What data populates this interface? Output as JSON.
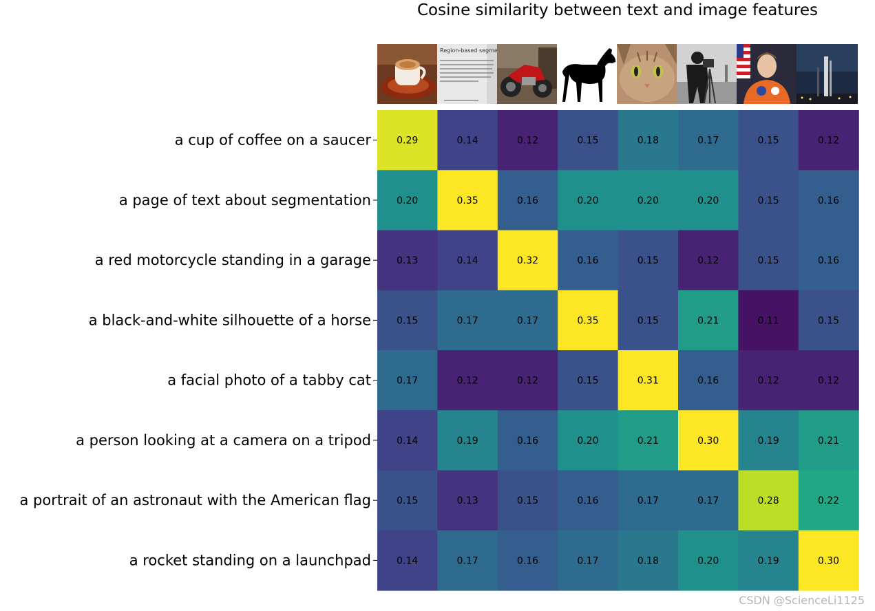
{
  "chart_data": {
    "type": "heatmap",
    "title": "Cosine similarity between text and image features",
    "rows": [
      "a cup of coffee on a saucer",
      "a page of text about segmentation",
      "a red motorcycle standing in a garage",
      "a black-and-white silhouette of a horse",
      "a facial photo of a tabby cat",
      "a person looking at a camera on a tripod",
      "a portrait of an astronaut with the American flag",
      "a rocket standing on a launchpad"
    ],
    "column_images": [
      "coffee",
      "text-page",
      "motorcycle",
      "horse",
      "cat",
      "camera-man",
      "astronaut",
      "rocket"
    ],
    "values": [
      [
        "0.29",
        "0.14",
        "0.12",
        "0.15",
        "0.18",
        "0.17",
        "0.15",
        "0.12"
      ],
      [
        "0.20",
        "0.35",
        "0.16",
        "0.20",
        "0.20",
        "0.20",
        "0.15",
        "0.16"
      ],
      [
        "0.13",
        "0.14",
        "0.32",
        "0.16",
        "0.15",
        "0.12",
        "0.15",
        "0.16"
      ],
      [
        "0.15",
        "0.17",
        "0.17",
        "0.35",
        "0.15",
        "0.21",
        "0.11",
        "0.15"
      ],
      [
        "0.17",
        "0.12",
        "0.12",
        "0.15",
        "0.31",
        "0.16",
        "0.12",
        "0.12"
      ],
      [
        "0.14",
        "0.19",
        "0.16",
        "0.20",
        "0.21",
        "0.30",
        "0.19",
        "0.21"
      ],
      [
        "0.15",
        "0.13",
        "0.15",
        "0.16",
        "0.17",
        "0.17",
        "0.28",
        "0.22"
      ],
      [
        "0.14",
        "0.17",
        "0.16",
        "0.17",
        "0.18",
        "0.20",
        "0.19",
        "0.30"
      ]
    ],
    "color_range": [
      0.1,
      0.3
    ],
    "colormap": "viridis",
    "image_text": {
      "heading": "Region-based segmentation"
    }
  },
  "watermark": "CSDN @ScienceLi1125"
}
